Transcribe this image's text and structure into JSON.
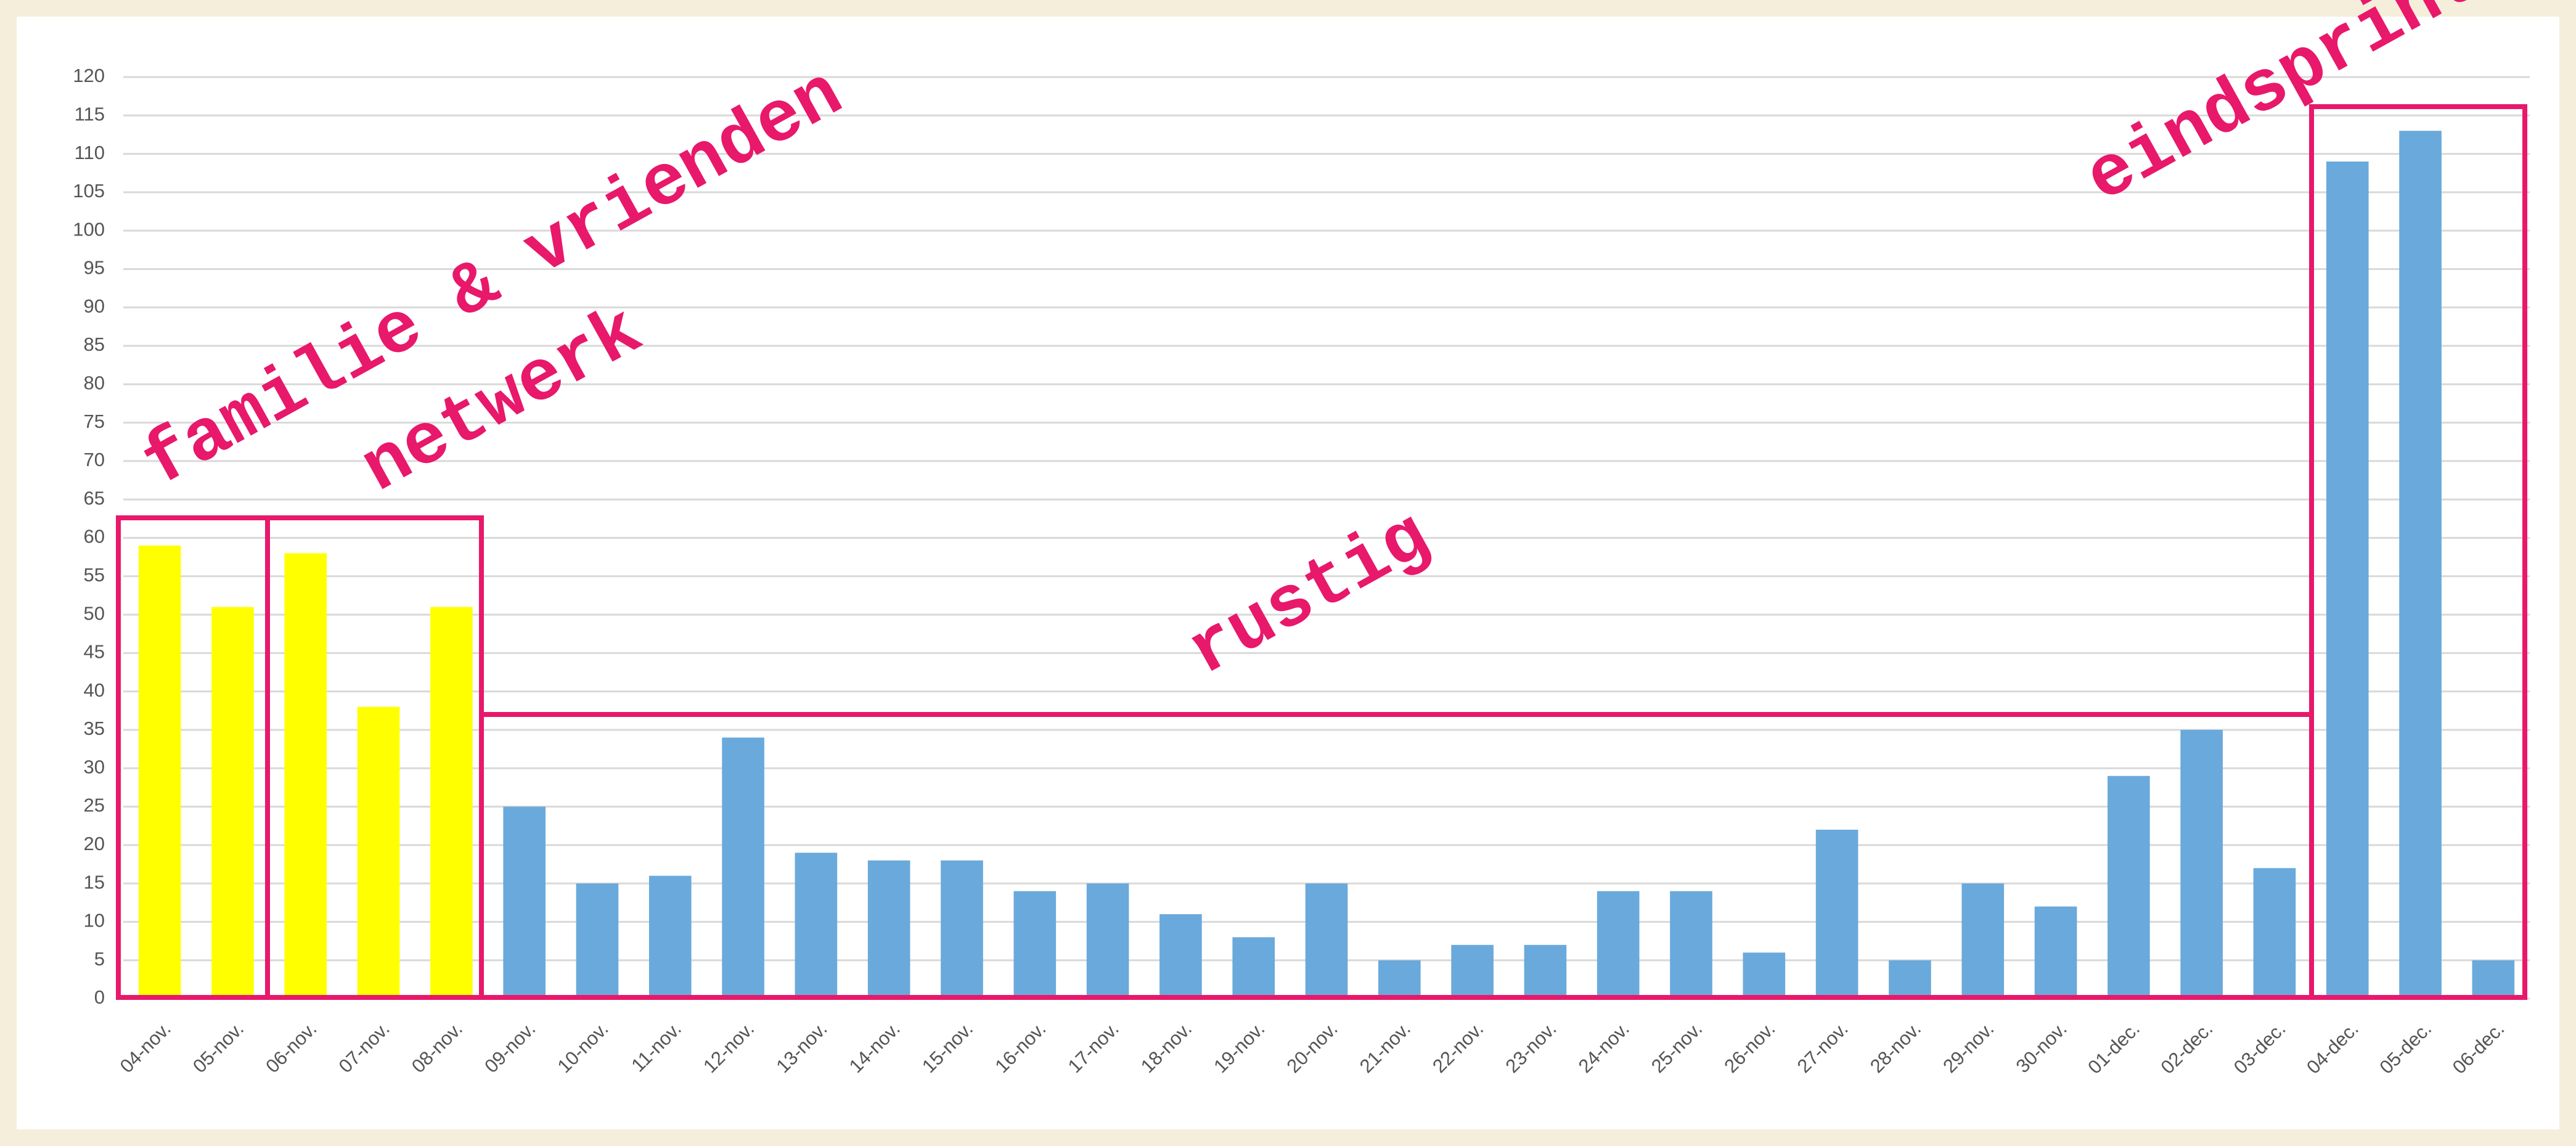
{
  "chart_data": {
    "type": "bar",
    "categories": [
      "04-nov.",
      "05-nov.",
      "06-nov.",
      "07-nov.",
      "08-nov.",
      "09-nov.",
      "10-nov.",
      "11-nov.",
      "12-nov.",
      "13-nov.",
      "14-nov.",
      "15-nov.",
      "16-nov.",
      "17-nov.",
      "18-nov.",
      "19-nov.",
      "20-nov.",
      "21-nov.",
      "22-nov.",
      "23-nov.",
      "24-nov.",
      "25-nov.",
      "26-nov.",
      "27-nov.",
      "28-nov.",
      "29-nov.",
      "30-nov.",
      "01-dec.",
      "02-dec.",
      "03-dec.",
      "04-dec.",
      "05-dec.",
      "06-dec."
    ],
    "values": [
      59,
      51,
      58,
      38,
      51,
      25,
      15,
      16,
      34,
      19,
      18,
      18,
      14,
      15,
      11,
      8,
      15,
      5,
      7,
      7,
      14,
      14,
      6,
      22,
      5,
      15,
      12,
      29,
      35,
      17,
      109,
      113,
      5
    ],
    "colors": [
      "#ffff00",
      "#ffff00",
      "#ffff00",
      "#ffff00",
      "#ffff00",
      "#6aa9db",
      "#6aa9db",
      "#6aa9db",
      "#6aa9db",
      "#6aa9db",
      "#6aa9db",
      "#6aa9db",
      "#6aa9db",
      "#6aa9db",
      "#6aa9db",
      "#6aa9db",
      "#6aa9db",
      "#6aa9db",
      "#6aa9db",
      "#6aa9db",
      "#6aa9db",
      "#6aa9db",
      "#6aa9db",
      "#6aa9db",
      "#6aa9db",
      "#6aa9db",
      "#6aa9db",
      "#6aa9db",
      "#6aa9db",
      "#6aa9db",
      "#6aa9db",
      "#6aa9db",
      "#6aa9db"
    ],
    "ylim": [
      0,
      120
    ],
    "yticks": [
      0,
      5,
      10,
      15,
      20,
      25,
      30,
      35,
      40,
      45,
      50,
      55,
      60,
      65,
      70,
      75,
      80,
      85,
      90,
      95,
      100,
      105,
      110,
      115,
      120
    ],
    "grid": true,
    "annotations": [
      "familie & vrienden",
      "netwerk",
      "rustig",
      "eindsprint"
    ]
  }
}
